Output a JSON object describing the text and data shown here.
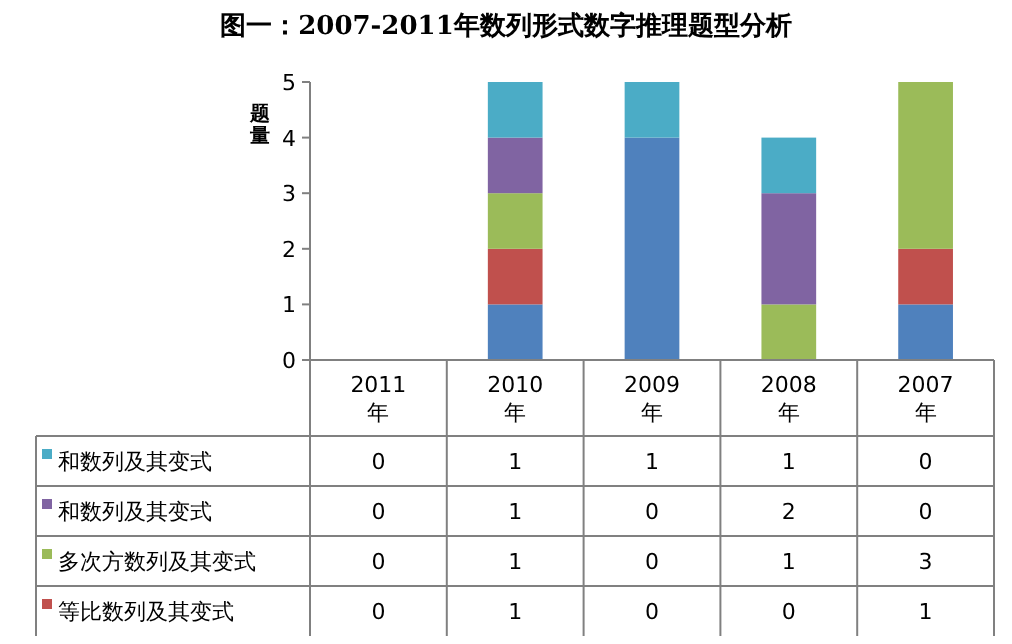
{
  "chart_data": {
    "type": "bar",
    "stacked": true,
    "title": "图一：2007-2011年数列形式数字推理题型分析",
    "ylabel": "题量",
    "categories": [
      "2011年",
      "2010年",
      "2009年",
      "2008年",
      "2007年"
    ],
    "ylim": [
      0,
      5
    ],
    "yticks": [
      0,
      1,
      2,
      3,
      4,
      5
    ],
    "legend": "bottom",
    "series": [
      {
        "color": "#4f81bd",
        "values": [
          0,
          1,
          4,
          0,
          1
        ]
      },
      {
        "name": "等比数列及其变式",
        "color": "#c0504d",
        "values": [
          0,
          1,
          0,
          0,
          1
        ],
        "value_labels": [
          "0",
          "1",
          "0",
          "0",
          "1"
        ]
      },
      {
        "name": "多次方数列及其变式",
        "color": "#9bbb59",
        "values": [
          0,
          1,
          0,
          1,
          3
        ],
        "value_labels": [
          "0",
          "1",
          "0",
          "1",
          "3"
        ]
      },
      {
        "name": "和数列及其变式",
        "color": "#8064a2",
        "values": [
          0,
          1,
          0,
          2,
          0
        ],
        "value_labels": [
          "0",
          "1",
          "0",
          "2",
          "0"
        ]
      },
      {
        "name": "和数列及其变式",
        "color": "#4bacc6",
        "values": [
          0,
          1,
          1,
          1,
          0
        ],
        "value_labels": [
          "0",
          "1",
          "1",
          "1",
          "0"
        ]
      }
    ]
  }
}
